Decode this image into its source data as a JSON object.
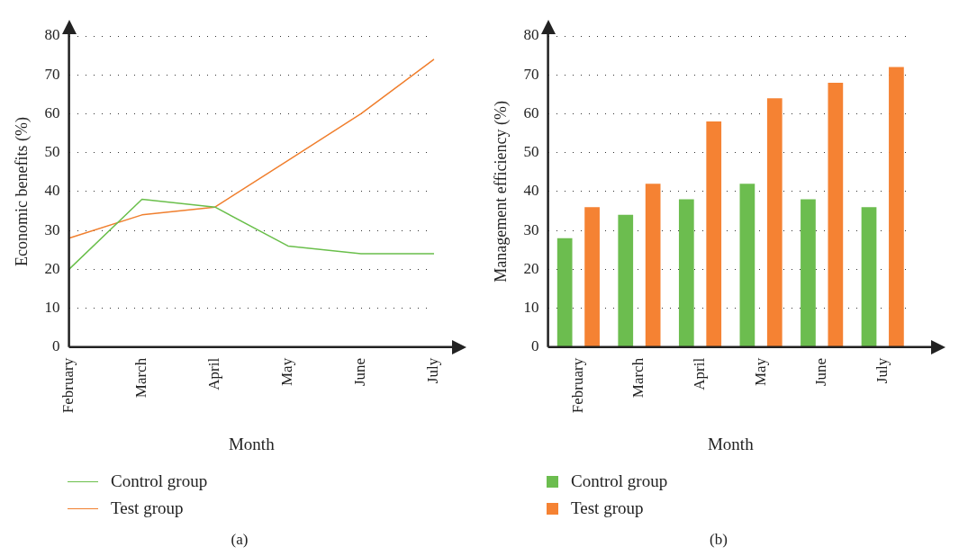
{
  "chart_data": [
    {
      "type": "line",
      "xlabel": "Month",
      "ylabel": "Economic benefits (%)",
      "categories": [
        "February",
        "March",
        "April",
        "May",
        "June",
        "July"
      ],
      "ylim": [
        0,
        80
      ],
      "yticks": [
        0,
        10,
        20,
        30,
        40,
        50,
        60,
        70,
        80
      ],
      "grid": "y",
      "legend": "bottom left",
      "marker": "none",
      "line_style": "solid",
      "annotations": [
        "(a)"
      ],
      "series": [
        {
          "name": "Control group",
          "color": "#6abf4b",
          "values": [
            20,
            38,
            36,
            26,
            24,
            24
          ]
        },
        {
          "name": "Test group",
          "color": "#f07f2e",
          "values": [
            28,
            34,
            36,
            48,
            60,
            74
          ]
        }
      ]
    },
    {
      "type": "bar",
      "xlabel": "Month",
      "ylabel": "Management efficiency (%)",
      "categories": [
        "February",
        "March",
        "April",
        "May",
        "June",
        "July"
      ],
      "ylim": [
        0,
        80
      ],
      "yticks": [
        0,
        10,
        20,
        30,
        40,
        50,
        60,
        70,
        80
      ],
      "grid": "y",
      "legend": "bottom left",
      "annotations": [
        "(b)"
      ],
      "series": [
        {
          "name": "Control group",
          "color": "#6cbd4f",
          "values": [
            28,
            34,
            38,
            42,
            38,
            36
          ]
        },
        {
          "name": "Test group",
          "color": "#f58233",
          "values": [
            36,
            42,
            58,
            64,
            68,
            72
          ]
        }
      ]
    }
  ]
}
